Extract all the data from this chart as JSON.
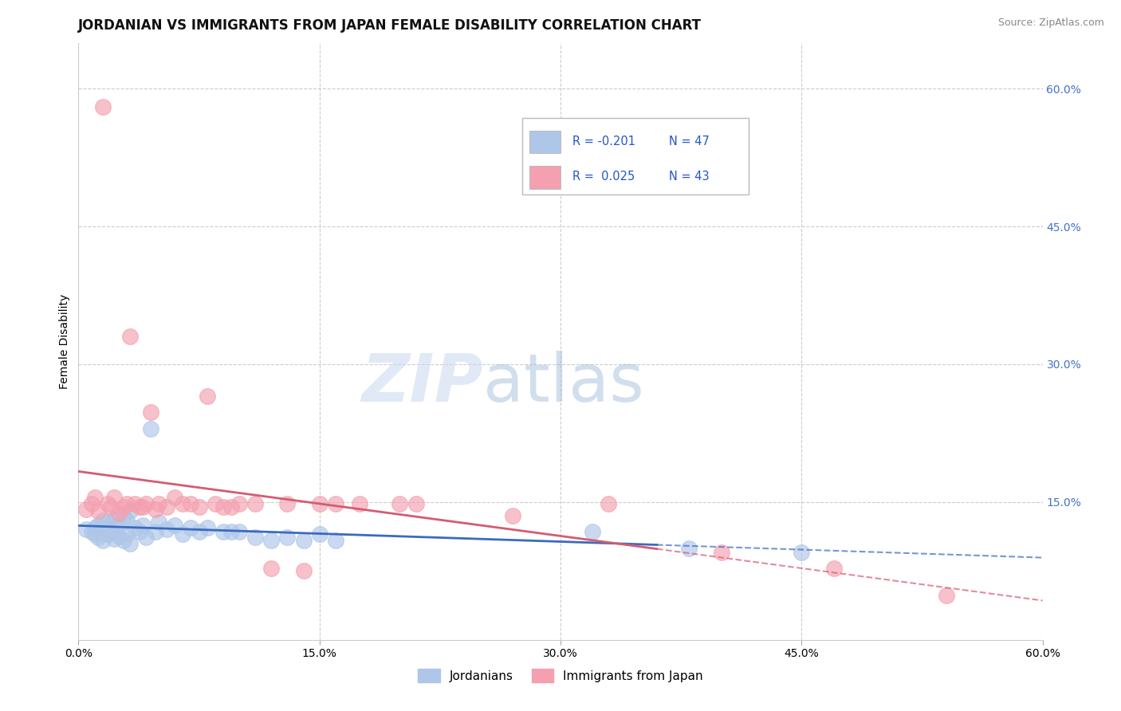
{
  "title": "JORDANIAN VS IMMIGRANTS FROM JAPAN FEMALE DISABILITY CORRELATION CHART",
  "source": "Source: ZipAtlas.com",
  "ylabel": "Female Disability",
  "xlim": [
    0.0,
    0.6
  ],
  "ylim": [
    0.0,
    0.65
  ],
  "yticks": [
    0.15,
    0.3,
    0.45,
    0.6
  ],
  "ytick_labels": [
    "15.0%",
    "30.0%",
    "45.0%",
    "60.0%"
  ],
  "xticks": [
    0.0,
    0.15,
    0.3,
    0.45,
    0.6
  ],
  "xtick_labels": [
    "0.0%",
    "15.0%",
    "30.0%",
    "45.0%",
    "60.0%"
  ],
  "series": [
    {
      "label": "Jordanians",
      "R": -0.201,
      "N": 47,
      "color": "#aec6e8",
      "line_color": "#3a6bbf",
      "x": [
        0.005,
        0.008,
        0.01,
        0.01,
        0.012,
        0.012,
        0.015,
        0.015,
        0.018,
        0.018,
        0.02,
        0.02,
        0.022,
        0.022,
        0.025,
        0.025,
        0.028,
        0.028,
        0.03,
        0.03,
        0.032,
        0.032,
        0.035,
        0.038,
        0.04,
        0.042,
        0.045,
        0.048,
        0.05,
        0.055,
        0.06,
        0.065,
        0.07,
        0.075,
        0.08,
        0.09,
        0.095,
        0.1,
        0.11,
        0.12,
        0.13,
        0.14,
        0.15,
        0.16,
        0.32,
        0.38,
        0.45
      ],
      "y": [
        0.12,
        0.118,
        0.122,
        0.115,
        0.125,
        0.112,
        0.13,
        0.108,
        0.128,
        0.115,
        0.12,
        0.118,
        0.132,
        0.11,
        0.125,
        0.113,
        0.135,
        0.108,
        0.13,
        0.115,
        0.14,
        0.105,
        0.122,
        0.118,
        0.125,
        0.112,
        0.23,
        0.118,
        0.128,
        0.12,
        0.125,
        0.115,
        0.122,
        0.118,
        0.122,
        0.118,
        0.118,
        0.118,
        0.112,
        0.108,
        0.112,
        0.108,
        0.115,
        0.108,
        0.118,
        0.1,
        0.095
      ]
    },
    {
      "label": "Immigrants from Japan",
      "R": 0.025,
      "N": 43,
      "color": "#f4a0b0",
      "line_color": "#d45c72",
      "x": [
        0.005,
        0.008,
        0.01,
        0.012,
        0.015,
        0.018,
        0.02,
        0.022,
        0.025,
        0.028,
        0.03,
        0.032,
        0.035,
        0.038,
        0.04,
        0.042,
        0.045,
        0.048,
        0.05,
        0.055,
        0.06,
        0.065,
        0.07,
        0.075,
        0.08,
        0.085,
        0.09,
        0.095,
        0.1,
        0.11,
        0.12,
        0.13,
        0.14,
        0.15,
        0.16,
        0.175,
        0.2,
        0.21,
        0.27,
        0.33,
        0.4,
        0.47,
        0.54
      ],
      "y": [
        0.142,
        0.148,
        0.155,
        0.14,
        0.58,
        0.148,
        0.145,
        0.155,
        0.138,
        0.145,
        0.148,
        0.33,
        0.148,
        0.145,
        0.145,
        0.148,
        0.248,
        0.142,
        0.148,
        0.145,
        0.155,
        0.148,
        0.148,
        0.145,
        0.265,
        0.148,
        0.145,
        0.145,
        0.148,
        0.148,
        0.078,
        0.148,
        0.075,
        0.148,
        0.148,
        0.148,
        0.148,
        0.148,
        0.135,
        0.148,
        0.095,
        0.078,
        0.048
      ]
    }
  ],
  "watermark_zip": "ZIP",
  "watermark_atlas": "atlas",
  "background_color": "#ffffff",
  "grid_color": "#cccccc",
  "title_fontsize": 12,
  "axis_fontsize": 10,
  "tick_fontsize": 10,
  "legend_color": "#2255cc"
}
